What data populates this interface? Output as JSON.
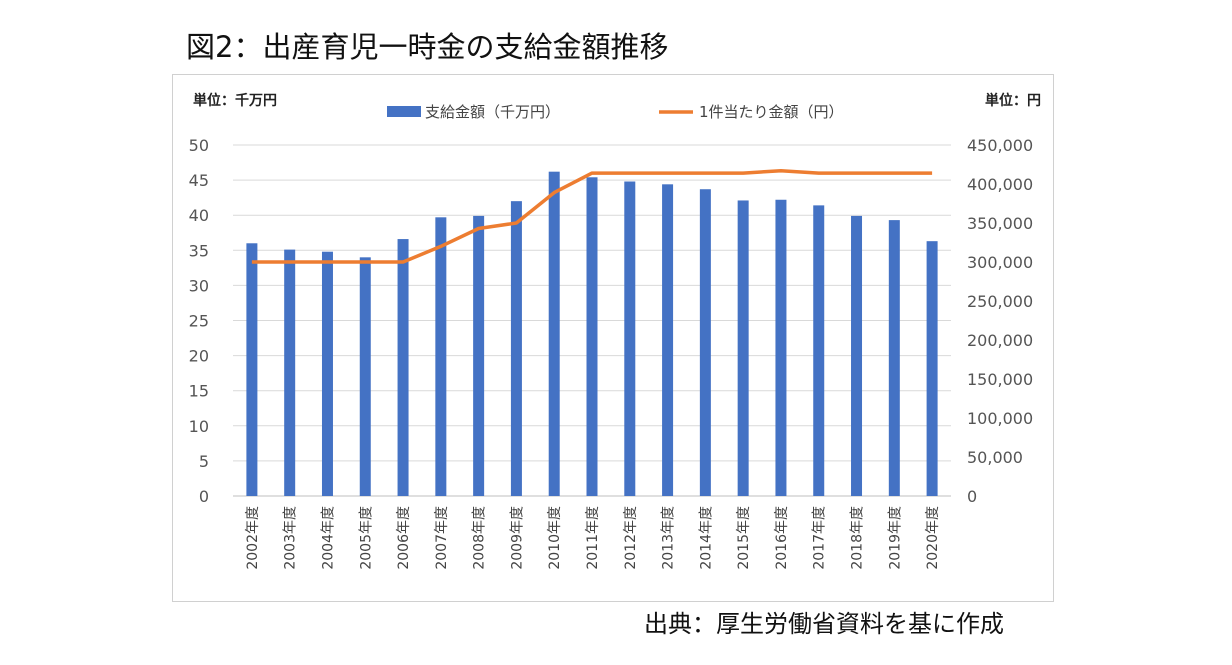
{
  "page": {
    "title": "図2：出産育児一時金の支給金額推移",
    "source": "出典：厚生労働省資料を基に作成"
  },
  "chart_data": {
    "type": "bar+line",
    "left_unit": "単位：千万円",
    "right_unit": "単位：円",
    "categories": [
      "2002年度",
      "2003年度",
      "2004年度",
      "2005年度",
      "2006年度",
      "2007年度",
      "2008年度",
      "2009年度",
      "2010年度",
      "2011年度",
      "2012年度",
      "2013年度",
      "2014年度",
      "2015年度",
      "2016年度",
      "2017年度",
      "2018年度",
      "2019年度",
      "2020年度"
    ],
    "series": [
      {
        "name": "支給金額（千万円）",
        "kind": "bar",
        "axis": "left",
        "color": "#4472C4",
        "values": [
          36.0,
          35.1,
          34.8,
          34.0,
          36.6,
          39.7,
          39.9,
          42.0,
          46.2,
          45.4,
          44.8,
          44.4,
          43.7,
          42.1,
          42.2,
          41.4,
          39.9,
          39.3,
          36.3
        ]
      },
      {
        "name": "1件当たり金額（円）",
        "kind": "line",
        "axis": "right",
        "color": "#ED7D31",
        "values": [
          300000,
          300000,
          300000,
          300000,
          300000,
          320000,
          343000,
          350000,
          389000,
          414000,
          414000,
          414000,
          414000,
          414000,
          417000,
          414000,
          414000,
          414000,
          414000
        ]
      }
    ],
    "y_left": {
      "min": 0,
      "max": 50,
      "step": 5,
      "ticks": [
        "0",
        "5",
        "10",
        "15",
        "20",
        "25",
        "30",
        "35",
        "40",
        "45",
        "50"
      ]
    },
    "y_right": {
      "min": 0,
      "max": 450000,
      "step": 50000,
      "ticks": [
        "0",
        "50,000",
        "100,000",
        "150,000",
        "200,000",
        "250,000",
        "300,000",
        "350,000",
        "400,000",
        "450,000"
      ]
    },
    "grid": true,
    "legend": "top-center"
  }
}
